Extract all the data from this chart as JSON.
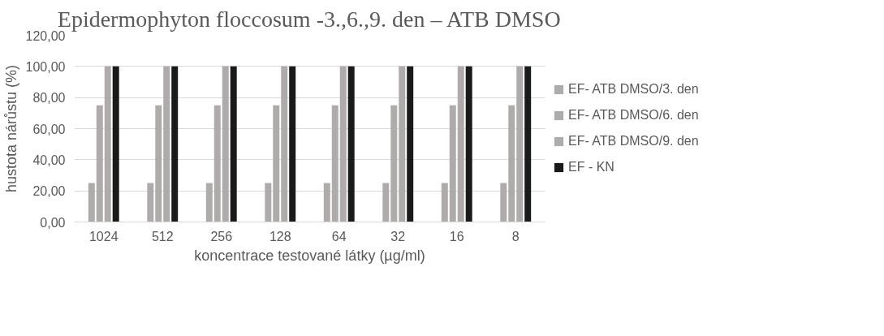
{
  "chart_data": {
    "type": "bar",
    "title": "Epidermophyton floccosum -3.,6.,9. den – ATB DMSO",
    "xlabel": "koncentrace testované látky (µg/ml)",
    "ylabel": "hustota nárůstu (%)",
    "categories": [
      "1024",
      "512",
      "256",
      "128",
      "64",
      "32",
      "16",
      "8"
    ],
    "series": [
      {
        "name": "EF- ATB DMSO/3. den",
        "color": "#afabab",
        "values": [
          25,
          25,
          25,
          25,
          25,
          25,
          25,
          25
        ]
      },
      {
        "name": "EF- ATB DMSO/6. den",
        "color": "#afabab",
        "values": [
          75,
          75,
          75,
          75,
          75,
          75,
          75,
          75
        ]
      },
      {
        "name": "EF- ATB DMSO/9. den",
        "color": "#afabab",
        "values": [
          100,
          100,
          100,
          100,
          100,
          100,
          100,
          100
        ]
      },
      {
        "name": "EF - KN",
        "color": "#1a1a1a",
        "values": [
          100,
          100,
          100,
          100,
          100,
          100,
          100,
          100
        ]
      }
    ],
    "ylim": [
      0,
      120
    ],
    "yticks": [
      {
        "value": 0,
        "label": "0,00"
      },
      {
        "value": 20,
        "label": "20,00"
      },
      {
        "value": 40,
        "label": "40,00"
      },
      {
        "value": 60,
        "label": "60,00"
      },
      {
        "value": 80,
        "label": "80,00"
      },
      {
        "value": 100,
        "label": "100,00"
      },
      {
        "value": 120,
        "label": "120,00"
      }
    ],
    "grid": "y",
    "legend": "right"
  }
}
